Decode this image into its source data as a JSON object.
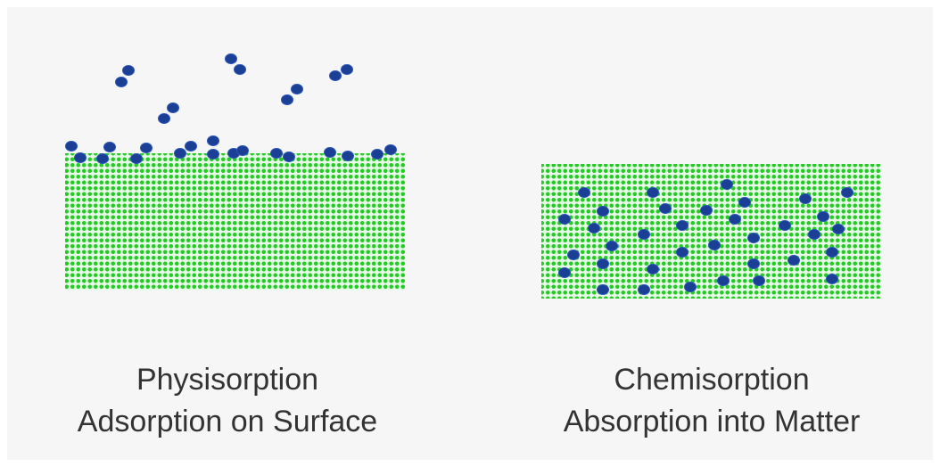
{
  "panels": [
    {
      "title": "Physisorption",
      "subtitle": "Adsorption on Surface"
    },
    {
      "title": "Chemisorption",
      "subtitle": "Absorption into Matter"
    }
  ]
}
